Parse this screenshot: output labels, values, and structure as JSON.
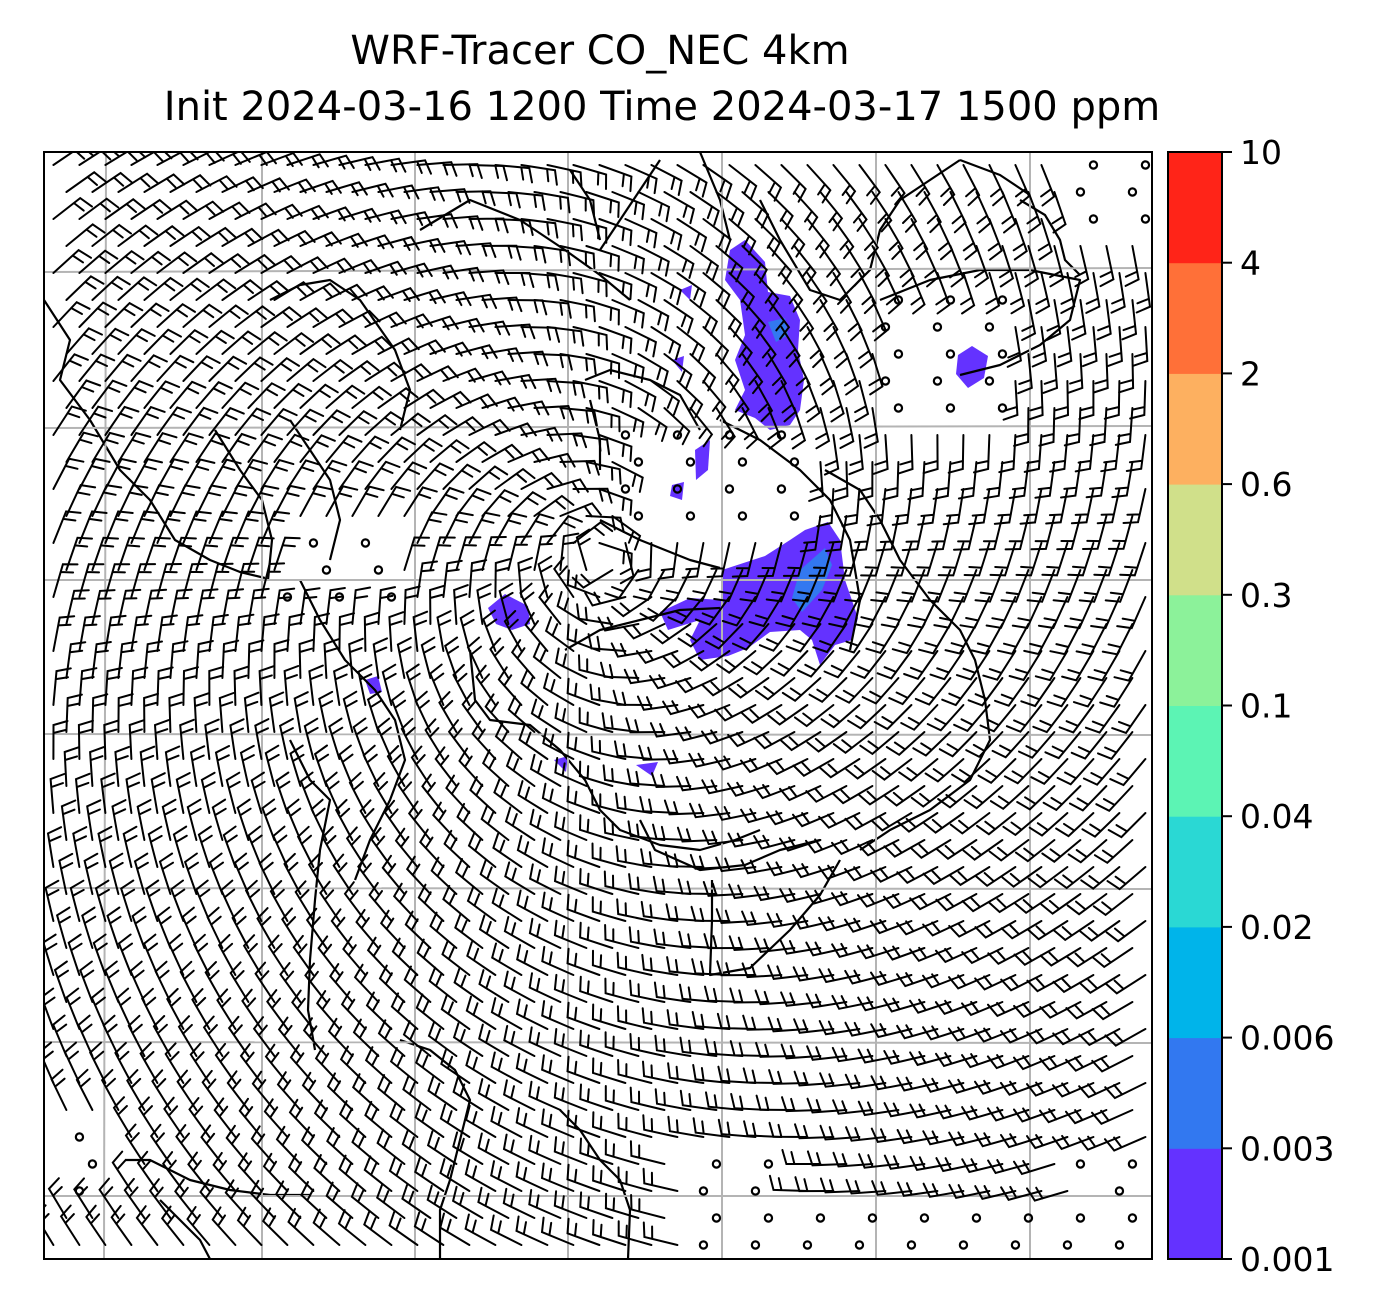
{
  "title": {
    "line1": "WRF-Tracer CO_NEC 4km",
    "line2": "Init 2024-03-16 1200 Time 2024-03-17 1500 ppm"
  },
  "colorbar": {
    "levels": [
      "0.001",
      "0.003",
      "0.006",
      "0.02",
      "0.04",
      "0.1",
      "0.3",
      "0.6",
      "2",
      "4",
      "10"
    ],
    "colors": [
      "#6432ff",
      "#3278f0",
      "#00b4ea",
      "#2ad8d4",
      "#5cf4b4",
      "#8cf29a",
      "#d0e08a",
      "#fdb060",
      "#ff7038",
      "#ff2418"
    ]
  },
  "map": {
    "plume_color": "#6432ff",
    "plume_core_color": "#3278f0",
    "grid_color": "#b4b4b4"
  }
}
